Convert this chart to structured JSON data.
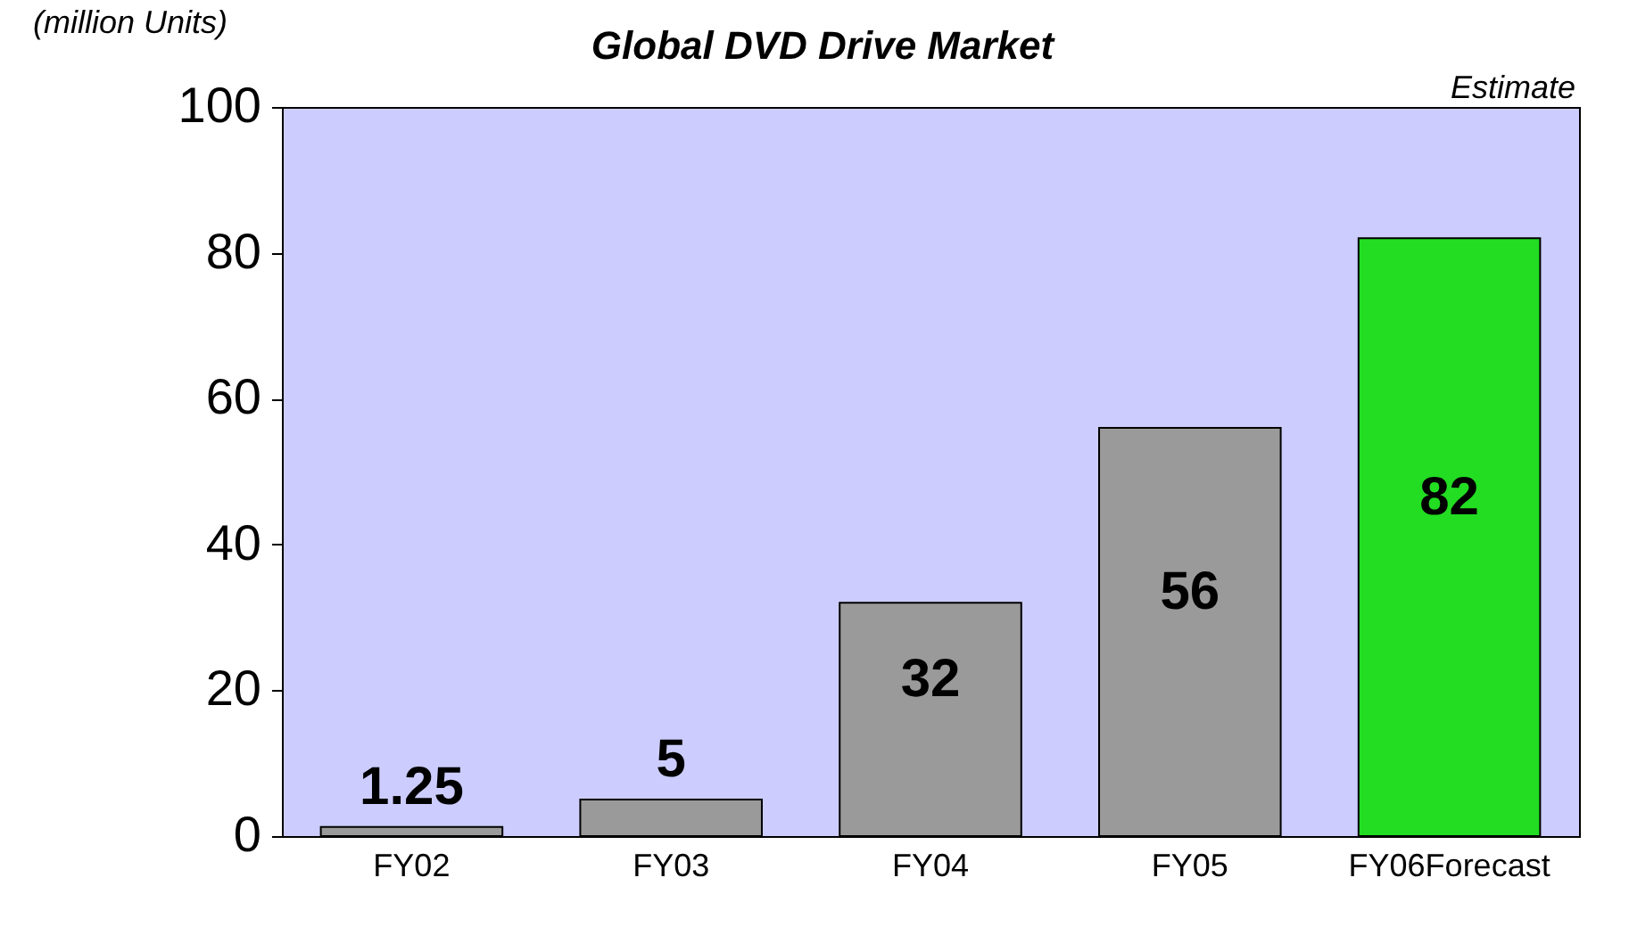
{
  "chart_data": {
    "type": "bar",
    "title": "Global DVD Drive Market",
    "ylabel": "(million Units)",
    "annotations": [
      "Estimate"
    ],
    "categories": [
      "FY02",
      "FY03",
      "FY04",
      "FY05",
      "FY06Forecast"
    ],
    "values": [
      1.25,
      5,
      32,
      56,
      82
    ],
    "colors": [
      "#9a9a9a",
      "#9a9a9a",
      "#9a9a9a",
      "#9a9a9a",
      "#22dd22"
    ],
    "ylim": [
      0,
      100
    ],
    "yticks": [
      0,
      20,
      40,
      60,
      80,
      100
    ],
    "data_labels": true,
    "grid": false
  }
}
